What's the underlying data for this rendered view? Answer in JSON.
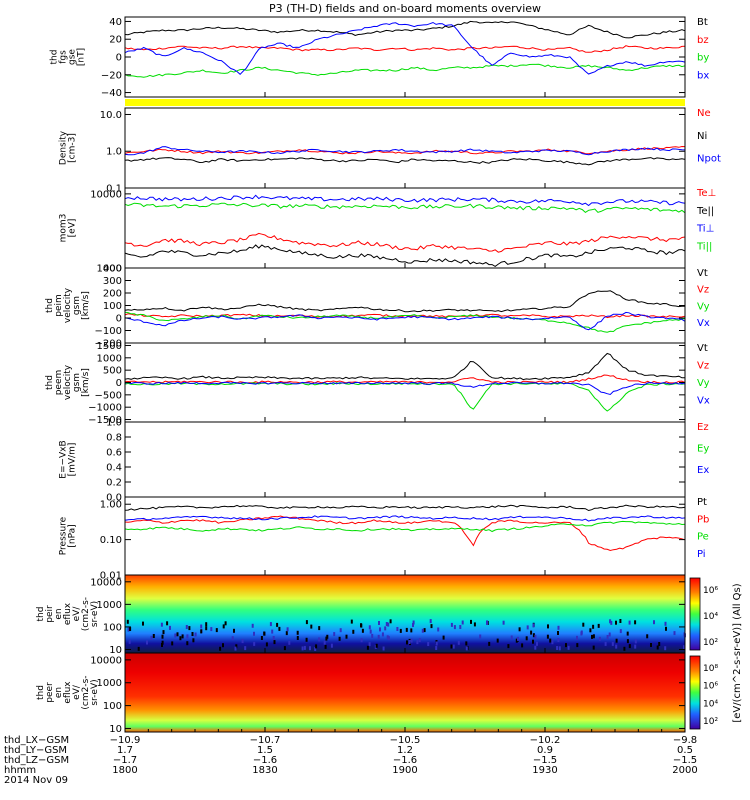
{
  "title": "P3 (TH-D) fields and on-board moments overview",
  "colors": {
    "black": "#000000",
    "red": "#ff0000",
    "green": "#00dd00",
    "blue": "#0000ff",
    "yellow": "#ffff00"
  },
  "chart_data": [
    {
      "type": "line",
      "ylabel": [
        "thd",
        "fgs",
        "gse",
        "[nT]"
      ],
      "ylim": [
        -45,
        45
      ],
      "ytick_labels": [
        "40",
        "20",
        "0",
        "−20",
        "−40"
      ],
      "ytick_values": [
        40,
        20,
        0,
        -20,
        -40
      ],
      "series": [
        {
          "name": "Bt",
          "color": "#000000",
          "values": [
            25,
            28,
            30,
            30,
            32,
            33,
            32,
            30,
            28,
            30,
            30,
            28,
            25,
            28,
            30,
            30,
            32,
            35,
            40,
            38,
            40,
            35,
            30,
            25,
            35,
            28,
            22,
            25,
            28,
            30
          ]
        },
        {
          "name": "bz",
          "color": "#ff0000",
          "values": [
            10,
            8,
            10,
            12,
            10,
            10,
            12,
            10,
            10,
            8,
            8,
            8,
            10,
            8,
            10,
            8,
            10,
            8,
            10,
            10,
            12,
            10,
            8,
            10,
            5,
            8,
            12,
            10,
            10,
            12
          ]
        },
        {
          "name": "by",
          "color": "#00dd00",
          "values": [
            -20,
            -22,
            -20,
            -18,
            -15,
            -18,
            -15,
            -12,
            -15,
            -18,
            -20,
            -18,
            -15,
            -15,
            -15,
            -12,
            -15,
            -12,
            -12,
            -10,
            -10,
            -8,
            -10,
            -12,
            -10,
            -12,
            -15,
            -12,
            -10,
            -10
          ]
        },
        {
          "name": "bx",
          "color": "#0000ff",
          "values": [
            5,
            10,
            0,
            10,
            5,
            -5,
            -20,
            10,
            15,
            10,
            20,
            25,
            30,
            35,
            38,
            35,
            38,
            35,
            10,
            -10,
            5,
            0,
            2,
            0,
            -20,
            -10,
            -5,
            -10,
            -5,
            -5
          ]
        }
      ]
    },
    {
      "type": "line",
      "ylabel": [
        "Density",
        "[cm-3]"
      ],
      "log": true,
      "ylim": [
        0.1,
        15
      ],
      "ytick_labels": [
        "10.0",
        "1.0",
        "0.1"
      ],
      "ytick_values": [
        10,
        1,
        0.1
      ],
      "series": [
        {
          "name": "Ne",
          "color": "#ff0000",
          "values": [
            0.9,
            1.0,
            1.1,
            1.0,
            0.9,
            1.0,
            0.9,
            0.9,
            1.0,
            1.1,
            1.0,
            0.9,
            0.9,
            1.0,
            0.9,
            0.9,
            1.0,
            1.0,
            0.9,
            0.9,
            1.0,
            1.0,
            1.1,
            1.0,
            0.9,
            1.0,
            1.1,
            1.2,
            1.2,
            1.3
          ]
        },
        {
          "name": "Ni",
          "color": "#000000",
          "values": [
            0.55,
            0.6,
            0.65,
            0.6,
            0.5,
            0.6,
            0.55,
            0.6,
            0.6,
            0.65,
            0.6,
            0.55,
            0.55,
            0.6,
            0.5,
            0.6,
            0.55,
            0.55,
            0.5,
            0.5,
            0.6,
            0.6,
            0.55,
            0.5,
            0.45,
            0.55,
            0.6,
            0.65,
            0.6,
            0.6
          ]
        },
        {
          "name": "Npot",
          "color": "#0000ff",
          "values": [
            0.8,
            0.9,
            1.3,
            1.1,
            1.0,
            0.95,
            1.0,
            0.95,
            0.9,
            1.0,
            1.1,
            1.0,
            0.95,
            1.0,
            1.1,
            1.0,
            0.95,
            1.0,
            1.1,
            1.0,
            0.9,
            1.0,
            1.05,
            1.0,
            0.85,
            1.0,
            1.1,
            1.2,
            1.1,
            1.1
          ]
        }
      ]
    },
    {
      "type": "line",
      "ylabel": [
        "mom3",
        "[eV]"
      ],
      "log": true,
      "ylim": [
        1000,
        12000
      ],
      "ytick_labels": [
        "10000",
        "1000"
      ],
      "ytick_values": [
        10000,
        1000
      ],
      "series": [
        {
          "name": "Te⊥",
          "color": "#ff0000",
          "values": [
            2200,
            2000,
            2400,
            2300,
            2100,
            2200,
            2400,
            2800,
            2500,
            2200,
            2100,
            2000,
            2200,
            2100,
            1900,
            1800,
            2000,
            1900,
            1800,
            1700,
            1800,
            2000,
            2200,
            2100,
            2300,
            2600,
            2700,
            2500,
            2400,
            2500
          ]
        },
        {
          "name": "Te||",
          "color": "#000000",
          "values": [
            1500,
            1400,
            1700,
            1600,
            1500,
            1600,
            1700,
            2000,
            1800,
            1600,
            1500,
            1400,
            1500,
            1400,
            1300,
            1200,
            1300,
            1250,
            1200,
            1100,
            1200,
            1350,
            1500,
            1400,
            1600,
            1800,
            1900,
            1700,
            1600,
            1700
          ]
        },
        {
          "name": "Ti⊥",
          "color": "#0000ff",
          "values": [
            9000,
            8800,
            8500,
            8400,
            8600,
            8800,
            9000,
            9200,
            8800,
            8600,
            8500,
            8400,
            8500,
            8600,
            8400,
            8200,
            8300,
            8400,
            8500,
            8300,
            8000,
            7900,
            8100,
            8000,
            7400,
            7800,
            8000,
            7800,
            7600,
            7500
          ]
        },
        {
          "name": "Ti||",
          "color": "#00dd00",
          "values": [
            7200,
            7000,
            6800,
            6900,
            7000,
            7200,
            7100,
            7000,
            6800,
            6900,
            6800,
            6700,
            6800,
            6900,
            6700,
            6600,
            6700,
            6800,
            6900,
            6700,
            6500,
            6400,
            6500,
            6400,
            5800,
            6200,
            6400,
            6200,
            6000,
            5900
          ]
        }
      ]
    },
    {
      "type": "line",
      "ylabel": [
        "thd",
        "peim",
        "velocity",
        "gsm",
        "[km/s]"
      ],
      "ylim": [
        -200,
        400
      ],
      "ytick_labels": [
        "400",
        "300",
        "200",
        "100",
        "0",
        "−100",
        "−200"
      ],
      "ytick_values": [
        400,
        300,
        200,
        100,
        0,
        -100,
        -200
      ],
      "series": [
        {
          "name": "Vt",
          "color": "#000000",
          "values": [
            60,
            70,
            80,
            60,
            90,
            70,
            80,
            110,
            90,
            70,
            60,
            70,
            90,
            70,
            60,
            55,
            60,
            65,
            60,
            55,
            60,
            70,
            80,
            90,
            200,
            220,
            150,
            120,
            110,
            90
          ]
        },
        {
          "name": "Vz",
          "color": "#ff0000",
          "values": [
            30,
            20,
            10,
            20,
            15,
            20,
            25,
            20,
            15,
            20,
            10,
            15,
            20,
            25,
            15,
            20,
            15,
            10,
            20,
            25,
            15,
            20,
            10,
            15,
            20,
            10,
            20,
            15,
            10,
            15
          ]
        },
        {
          "name": "Vy",
          "color": "#00dd00",
          "values": [
            40,
            20,
            -20,
            -10,
            10,
            20,
            -10,
            20,
            10,
            0,
            10,
            20,
            10,
            0,
            10,
            20,
            0,
            10,
            20,
            10,
            0,
            -10,
            -20,
            -40,
            -80,
            -120,
            -60,
            -40,
            -20,
            -10
          ]
        },
        {
          "name": "Vx",
          "color": "#0000ff",
          "values": [
            0,
            -30,
            -60,
            -20,
            0,
            10,
            -10,
            0,
            10,
            20,
            0,
            10,
            0,
            -10,
            0,
            10,
            0,
            -10,
            0,
            10,
            0,
            -10,
            0,
            10,
            -100,
            20,
            40,
            10,
            0,
            -20
          ]
        }
      ]
    },
    {
      "type": "line",
      "ylabel": [
        "thd",
        "peem",
        "velocity",
        "gsm",
        "[km/s]"
      ],
      "ylim": [
        -1600,
        1600
      ],
      "ytick_labels": [
        "1500",
        "1000",
        "500",
        "0",
        "−500",
        "−1000",
        "−1500"
      ],
      "ytick_values": [
        1500,
        1000,
        500,
        0,
        -500,
        -1000,
        -1500
      ],
      "series": [
        {
          "name": "Vt",
          "color": "#000000",
          "values": [
            150,
            180,
            200,
            160,
            220,
            180,
            190,
            210,
            180,
            170,
            160,
            180,
            200,
            170,
            160,
            150,
            160,
            170,
            900,
            200,
            160,
            150,
            180,
            210,
            400,
            1200,
            500,
            300,
            250,
            200
          ]
        },
        {
          "name": "Vz",
          "color": "#ff0000",
          "values": [
            20,
            30,
            10,
            40,
            20,
            30,
            10,
            20,
            30,
            10,
            20,
            30,
            10,
            20,
            30,
            10,
            20,
            30,
            200,
            20,
            10,
            20,
            30,
            10,
            150,
            300,
            100,
            20,
            10,
            20
          ]
        },
        {
          "name": "Vy",
          "color": "#00dd00",
          "values": [
            -50,
            -80,
            -60,
            -40,
            -70,
            -50,
            -60,
            -40,
            -50,
            -60,
            -70,
            -40,
            -50,
            -60,
            -40,
            -50,
            -60,
            -40,
            -1100,
            -60,
            -50,
            -40,
            -60,
            -50,
            -300,
            -1200,
            -400,
            -100,
            -60,
            -50
          ]
        },
        {
          "name": "Vx",
          "color": "#0000ff",
          "values": [
            -20,
            -40,
            -30,
            -20,
            -30,
            -20,
            -40,
            -30,
            -20,
            -30,
            -20,
            -40,
            -30,
            -20,
            -30,
            -20,
            -40,
            -30,
            -200,
            -30,
            -20,
            -40,
            -30,
            -20,
            -100,
            -500,
            -150,
            -40,
            -30,
            -20
          ]
        }
      ]
    },
    {
      "type": "line",
      "ylabel": [
        "E=−VxB",
        "[mV/m]"
      ],
      "ylim": [
        0,
        1.0
      ],
      "ytick_labels": [
        "1.0",
        "0.8",
        "0.6",
        "0.4",
        "0.2",
        "0.0"
      ],
      "ytick_values": [
        1.0,
        0.8,
        0.6,
        0.4,
        0.2,
        0.0
      ],
      "series": [
        {
          "name": "Ez",
          "color": "#ff0000",
          "values": []
        },
        {
          "name": "Ey",
          "color": "#00dd00",
          "values": []
        },
        {
          "name": "Ex",
          "color": "#0000ff",
          "values": []
        }
      ]
    },
    {
      "type": "line",
      "ylabel": [
        "Pressure",
        "[nPa]"
      ],
      "log": true,
      "ylim": [
        0.01,
        1.6
      ],
      "ytick_labels": [
        "1.00",
        "0.10",
        "0.01"
      ],
      "ytick_values": [
        1,
        0.1,
        0.01
      ],
      "series": [
        {
          "name": "Pt",
          "color": "#000000",
          "values": [
            0.7,
            0.75,
            0.8,
            0.85,
            0.8,
            0.85,
            0.9,
            0.85,
            0.8,
            0.8,
            0.85,
            0.8,
            0.85,
            0.8,
            0.85,
            0.8,
            0.8,
            0.85,
            0.8,
            0.85,
            0.9,
            0.85,
            0.8,
            0.85,
            0.7,
            0.8,
            0.9,
            0.85,
            0.85,
            0.8
          ]
        },
        {
          "name": "Pb",
          "color": "#ff0000",
          "values": [
            0.3,
            0.35,
            0.3,
            0.35,
            0.35,
            0.3,
            0.35,
            0.4,
            0.45,
            0.4,
            0.35,
            0.3,
            0.3,
            0.35,
            0.3,
            0.3,
            0.35,
            0.3,
            0.06,
            0.3,
            0.35,
            0.3,
            0.3,
            0.3,
            0.08,
            0.05,
            0.06,
            0.1,
            0.12,
            0.1
          ]
        },
        {
          "name": "Pe",
          "color": "#00dd00",
          "values": [
            0.2,
            0.2,
            0.22,
            0.2,
            0.18,
            0.2,
            0.2,
            0.18,
            0.2,
            0.22,
            0.2,
            0.2,
            0.18,
            0.2,
            0.2,
            0.18,
            0.2,
            0.2,
            0.2,
            0.18,
            0.2,
            0.22,
            0.25,
            0.28,
            0.25,
            0.3,
            0.32,
            0.3,
            0.28,
            0.28
          ]
        },
        {
          "name": "Pi",
          "color": "#0000ff",
          "values": [
            0.35,
            0.38,
            0.4,
            0.42,
            0.45,
            0.42,
            0.4,
            0.38,
            0.4,
            0.42,
            0.45,
            0.42,
            0.4,
            0.42,
            0.45,
            0.42,
            0.4,
            0.42,
            0.4,
            0.38,
            0.42,
            0.45,
            0.42,
            0.4,
            0.35,
            0.4,
            0.42,
            0.45,
            0.42,
            0.4
          ]
        }
      ]
    },
    {
      "type": "heatmap",
      "ylabel": [
        "thd",
        "peir",
        "en",
        "eflux",
        "eV/",
        "(cm2-s-",
        "sr-eV)"
      ],
      "log": true,
      "ylim": [
        7,
        20000
      ],
      "ytick_labels": [
        "10000",
        "1000",
        "100",
        "10"
      ],
      "ytick_values": [
        10000,
        1000,
        100,
        10
      ],
      "colorbar": {
        "label": "[eV/(cm^2-s-sr-eV)] (All Qs)",
        "ticks": [
          "10⁶",
          "10⁴",
          "10²"
        ]
      }
    },
    {
      "type": "heatmap",
      "ylabel": [
        "thd",
        "peer",
        "en",
        "eflux",
        "eV/",
        "(cm2-s-",
        "sr-eV)"
      ],
      "log": true,
      "ylim": [
        7,
        20000
      ],
      "ytick_labels": [
        "10000",
        "1000",
        "100",
        "10"
      ],
      "ytick_values": [
        10000,
        1000,
        100,
        10
      ],
      "colorbar": {
        "label": "[eV/(cm^2-s-sr-eV)] (All Qs)",
        "ticks": [
          "10⁸",
          "10⁶",
          "10⁴",
          "10²"
        ]
      }
    }
  ],
  "legends": [
    [
      "Bt",
      "bz",
      "by",
      "bx"
    ],
    [
      "Ne",
      "Ni",
      "Npot"
    ],
    [
      "Te⊥",
      "Te||",
      "Ti⊥",
      "Ti||"
    ],
    [
      "Vt",
      "Vz",
      "Vy",
      "Vx"
    ],
    [
      "Vt",
      "Vz",
      "Vy",
      "Vx"
    ],
    [
      "Ez",
      "Ey",
      "Ex"
    ],
    [
      "Pt",
      "Pb",
      "Pe",
      "Pi"
    ]
  ],
  "xaxis": {
    "row_labels": [
      "thd_LX−GSM",
      "thd_LY−GSM",
      "thd_LZ−GSM",
      "hhmm"
    ],
    "date": "2014 Nov 09",
    "ticks": [
      {
        "lx": "−10.9",
        "ly": "1.7",
        "lz": "−1.7",
        "hhmm": "1800"
      },
      {
        "lx": "−10.7",
        "ly": "1.5",
        "lz": "−1.6",
        "hhmm": "1830"
      },
      {
        "lx": "−10.5",
        "ly": "1.2",
        "lz": "−1.6",
        "hhmm": "1900"
      },
      {
        "lx": "−10.2",
        "ly": "0.9",
        "lz": "−1.5",
        "hhmm": "1930"
      },
      {
        "lx": "−9.8",
        "ly": "0.5",
        "lz": "−1.5",
        "hhmm": "2000"
      }
    ]
  }
}
